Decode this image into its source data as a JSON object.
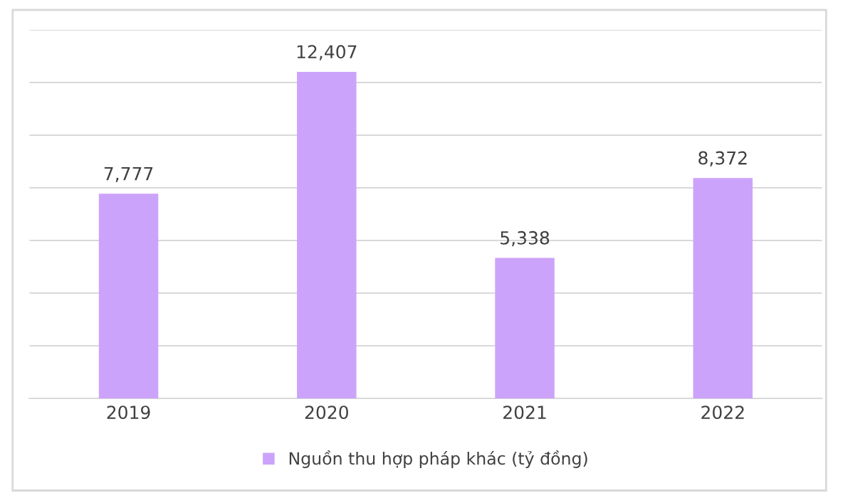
{
  "chart_data": {
    "type": "bar",
    "categories": [
      "2019",
      "2020",
      "2021",
      "2022"
    ],
    "series": [
      {
        "name": "Nguồn thu hợp pháp khác (tỷ đồng)",
        "color": "#cca3fb",
        "values": [
          7777,
          12407,
          5338,
          8372
        ],
        "value_labels": [
          "7,777",
          "12,407",
          "5,338",
          "8,372"
        ]
      }
    ],
    "ylim": [
      0,
      14000
    ],
    "yticks": [
      {
        "value": 0,
        "label": null
      },
      {
        "value": 2000,
        "label": null
      },
      {
        "value": 4000,
        "label": null
      },
      {
        "value": 6000,
        "label": null
      },
      {
        "value": 8000,
        "label": null
      },
      {
        "value": 10000,
        "label": null
      },
      {
        "value": 12000,
        "label": null
      },
      {
        "value": 14000,
        "label": null
      }
    ],
    "tick_labels": "x",
    "grid": "y",
    "legend": "bottom"
  }
}
